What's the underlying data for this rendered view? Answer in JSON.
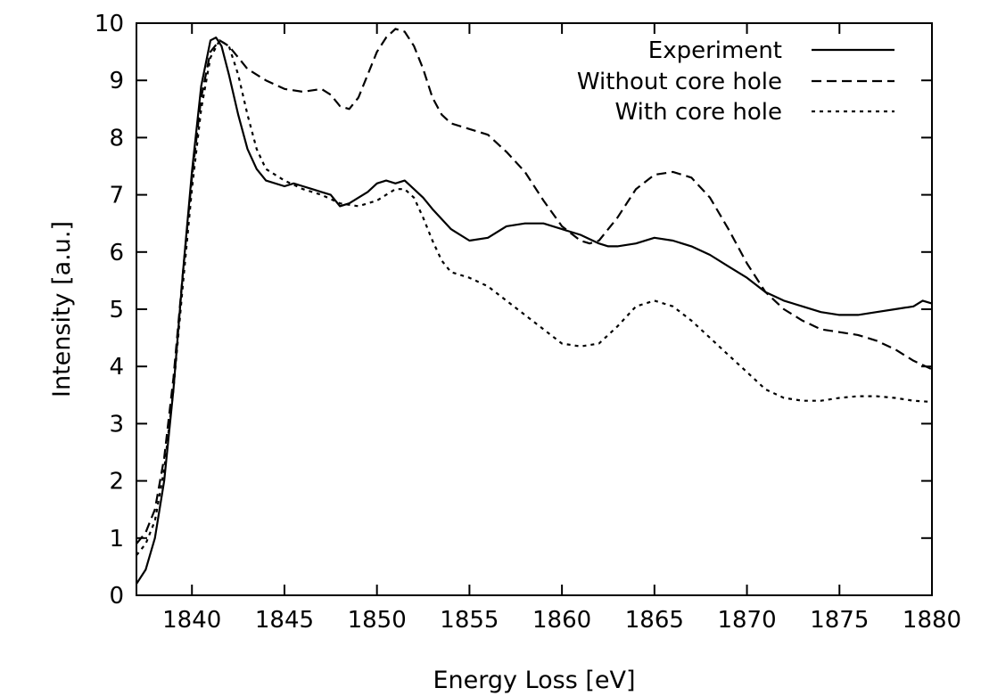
{
  "chart_data": {
    "type": "line",
    "title": "",
    "xlabel": "Energy Loss [eV]",
    "ylabel": "Intensity [a.u.]",
    "xlim": [
      1837,
      1880
    ],
    "ylim": [
      0,
      10
    ],
    "xticks": [
      "1840",
      "1845",
      "1850",
      "1855",
      "1860",
      "1865",
      "1870",
      "1875",
      "1880"
    ],
    "yticks": [
      "0",
      "1",
      "2",
      "3",
      "4",
      "5",
      "6",
      "7",
      "8",
      "9",
      "10"
    ],
    "grid": false,
    "legend": "top-right",
    "series": [
      {
        "name": "Experiment",
        "style": "solid",
        "x": [
          1837,
          1837.5,
          1838,
          1838.5,
          1839,
          1839.5,
          1840,
          1840.5,
          1841,
          1841.3,
          1841.6,
          1842,
          1842.5,
          1843,
          1843.5,
          1844,
          1845,
          1845.5,
          1846,
          1846.5,
          1847,
          1847.5,
          1848,
          1848.5,
          1849,
          1849.5,
          1850,
          1850.5,
          1851,
          1851.5,
          1852,
          1852.5,
          1853,
          1854,
          1855,
          1856,
          1857,
          1858,
          1859,
          1860,
          1861,
          1862,
          1862.5,
          1863,
          1864,
          1865,
          1866,
          1867,
          1868,
          1869,
          1870,
          1871,
          1872,
          1873,
          1874,
          1875,
          1876,
          1877,
          1878,
          1879,
          1879.5,
          1880
        ],
        "y": [
          0.2,
          0.45,
          1.0,
          2.0,
          3.6,
          5.6,
          7.4,
          8.9,
          9.7,
          9.75,
          9.6,
          9.1,
          8.4,
          7.8,
          7.45,
          7.25,
          7.15,
          7.2,
          7.15,
          7.1,
          7.05,
          7.0,
          6.8,
          6.85,
          6.95,
          7.05,
          7.2,
          7.25,
          7.2,
          7.25,
          7.1,
          6.95,
          6.75,
          6.4,
          6.2,
          6.25,
          6.45,
          6.5,
          6.5,
          6.4,
          6.3,
          6.15,
          6.1,
          6.1,
          6.15,
          6.25,
          6.2,
          6.1,
          5.95,
          5.75,
          5.55,
          5.3,
          5.15,
          5.05,
          4.95,
          4.9,
          4.9,
          4.95,
          5.0,
          5.05,
          5.15,
          5.1
        ]
      },
      {
        "name": "Without core hole",
        "style": "dashed",
        "x": [
          1837,
          1837.5,
          1838,
          1838.5,
          1839,
          1839.5,
          1840,
          1840.5,
          1841,
          1841.5,
          1842,
          1842.5,
          1843,
          1844,
          1845,
          1846,
          1847,
          1847.5,
          1848,
          1848.5,
          1849,
          1849.5,
          1850,
          1850.5,
          1851,
          1851.5,
          1852,
          1852.5,
          1853,
          1853.5,
          1854,
          1855,
          1856,
          1857,
          1858,
          1859,
          1860,
          1861,
          1861.5,
          1862,
          1863,
          1864,
          1865,
          1866,
          1867,
          1868,
          1869,
          1870,
          1871,
          1872,
          1873,
          1874,
          1875,
          1876,
          1877,
          1878,
          1879,
          1880
        ],
        "y": [
          0.9,
          1.1,
          1.5,
          2.4,
          3.8,
          5.6,
          7.3,
          8.7,
          9.5,
          9.7,
          9.6,
          9.4,
          9.2,
          9.0,
          8.85,
          8.8,
          8.85,
          8.75,
          8.55,
          8.5,
          8.7,
          9.1,
          9.5,
          9.75,
          9.9,
          9.85,
          9.6,
          9.2,
          8.7,
          8.4,
          8.25,
          8.15,
          8.05,
          7.75,
          7.4,
          6.9,
          6.45,
          6.2,
          6.15,
          6.2,
          6.6,
          7.1,
          7.35,
          7.4,
          7.3,
          6.95,
          6.4,
          5.8,
          5.3,
          5.0,
          4.8,
          4.65,
          4.6,
          4.55,
          4.45,
          4.3,
          4.1,
          3.95
        ]
      },
      {
        "name": "With core hole",
        "style": "dotted",
        "x": [
          1837,
          1837.5,
          1838,
          1838.5,
          1839,
          1839.5,
          1840,
          1840.5,
          1841,
          1841.5,
          1842,
          1842.5,
          1843,
          1843.5,
          1844,
          1845,
          1846,
          1847,
          1848,
          1849,
          1850,
          1850.5,
          1851,
          1851.5,
          1852,
          1852.5,
          1853,
          1853.5,
          1854,
          1855,
          1856,
          1857,
          1858,
          1859,
          1860,
          1861,
          1862,
          1863,
          1864,
          1865,
          1866,
          1867,
          1868,
          1869,
          1870,
          1871,
          1872,
          1873,
          1874,
          1875,
          1876,
          1877,
          1878,
          1879,
          1880
        ],
        "y": [
          0.7,
          0.9,
          1.3,
          2.2,
          3.6,
          5.4,
          7.1,
          8.5,
          9.4,
          9.7,
          9.6,
          9.1,
          8.4,
          7.8,
          7.45,
          7.25,
          7.1,
          7.0,
          6.85,
          6.8,
          6.9,
          7.0,
          7.1,
          7.1,
          6.95,
          6.6,
          6.2,
          5.85,
          5.65,
          5.55,
          5.4,
          5.15,
          4.9,
          4.65,
          4.4,
          4.35,
          4.4,
          4.7,
          5.05,
          5.15,
          5.05,
          4.8,
          4.5,
          4.2,
          3.9,
          3.6,
          3.45,
          3.4,
          3.4,
          3.45,
          3.48,
          3.48,
          3.45,
          3.4,
          3.38
        ]
      }
    ]
  }
}
